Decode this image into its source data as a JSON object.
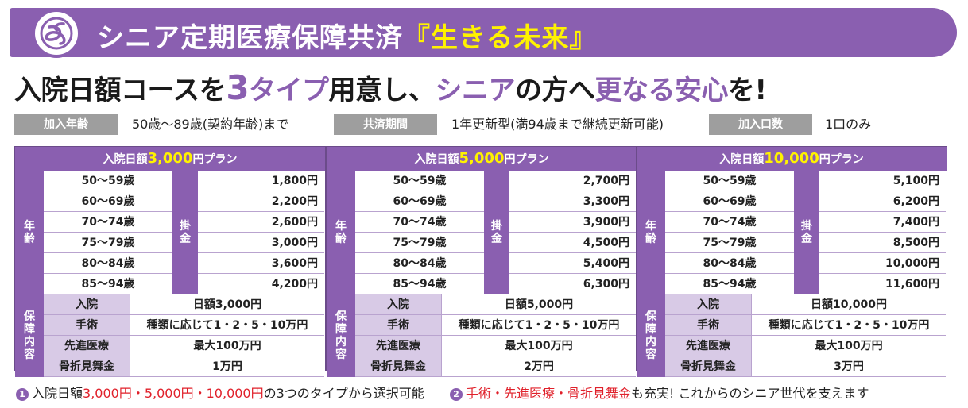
{
  "header": {
    "title_main": "シニア定期医療保障共済",
    "title_highlight": "『生きる未来』"
  },
  "headline": {
    "part1": "入院日額コースを",
    "num": "3",
    "part2": "タイプ",
    "part3": "用意し、",
    "part4": "シニア",
    "part5": "の方へ",
    "part6": "更なる安心",
    "part7": "を!"
  },
  "info": {
    "age_label": "加入年齢",
    "age_value": "50歳～89歳(契約年齢)まで",
    "period_label": "共済期間",
    "period_value": "1年更新型(満94歳まで継続更新可能)",
    "units_label": "加入口数",
    "units_value": "1口のみ"
  },
  "plans": [
    {
      "prefix": "入院日額",
      "amount": "3,000",
      "suffix": "円プラン",
      "prices": [
        "1,800円",
        "2,200円",
        "2,600円",
        "3,000円",
        "3,600円",
        "4,200円"
      ],
      "coverage": [
        "日額3,000円",
        "種類に応じて1・2・5・10万円",
        "最大100万円",
        "1万円"
      ]
    },
    {
      "prefix": "入院日額",
      "amount": "5,000",
      "suffix": "円プラン",
      "prices": [
        "2,700円",
        "3,300円",
        "3,900円",
        "4,500円",
        "5,400円",
        "6,300円"
      ],
      "coverage": [
        "日額5,000円",
        "種類に応じて1・2・5・10万円",
        "最大100万円",
        "2万円"
      ]
    },
    {
      "prefix": "入院日額",
      "amount": "10,000",
      "suffix": "円プラン",
      "prices": [
        "5,100円",
        "6,200円",
        "7,400円",
        "8,500円",
        "10,000円",
        "11,600円"
      ],
      "coverage": [
        "日額10,000円",
        "種類に応じて1・2・5・10万円",
        "最大100万円",
        "3万円"
      ]
    }
  ],
  "ages": [
    "50～59歳",
    "60～69歳",
    "70～74歳",
    "75～79歳",
    "80～84歳",
    "85～94歳"
  ],
  "age_label": "年齢",
  "premium_label": "掛金",
  "coverage_label": "保障内容",
  "coverage_items": [
    "入院",
    "手術",
    "先進医療",
    "骨折見舞金"
  ],
  "footer": {
    "n1": "1",
    "t1a": "入院日額",
    "t1b": "3,000円・5,000円・10,000円",
    "t1c": "の3つのタイプから選択可能",
    "n2": "2",
    "t2a": "手術・先進医療・骨折見舞金",
    "t2b": "も充実! これからのシニア世代を支えます"
  },
  "colors": {
    "purple": "#8a5fb0",
    "light_purple": "#d8cae6",
    "yellow": "#fff200",
    "red": "#e0202a",
    "gray": "#9e9e9e"
  }
}
